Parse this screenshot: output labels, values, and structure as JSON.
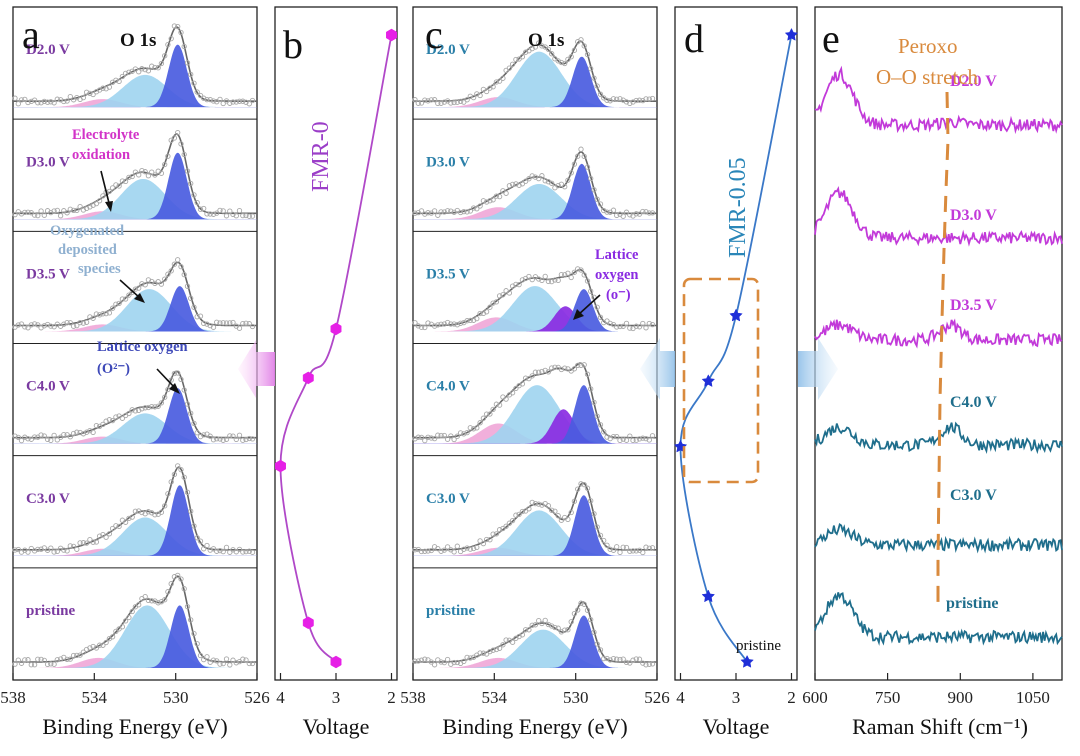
{
  "panel_letters": {
    "a": "a",
    "b": "b",
    "c": "c",
    "d": "d",
    "e": "e"
  },
  "colors": {
    "violet_label": "#7a3aa0",
    "teal_label": "#2a7fa8",
    "fmr0_curve": "#b048c8",
    "fmr0_marker": "#e620e6",
    "fmr005_curve": "#3a78c8",
    "fmr005_marker": "#1f2fd8",
    "lattice_peak": "#4a5ce0",
    "deposited_peak": "#9fd4f0",
    "electrolyte_peak": "#f0a8d8",
    "purple_peak": "#8a2be2",
    "envelope": "#666666",
    "raman_magenta": "#c23ad9",
    "raman_teal": "#1f6e8c",
    "peroxo": "#d98a3d",
    "text_magenta": "#d233c8",
    "annot_blue_grey": "#8fb0d0",
    "annot_blue": "#3d48b8"
  },
  "chart_data": [
    {
      "id": "a",
      "type": "line",
      "title": "O 1s",
      "xlabel": "Binding Energy (eV)",
      "xlim": [
        538,
        526
      ],
      "xticks": [
        "538",
        "534",
        "530",
        "526"
      ],
      "spectra": [
        {
          "label": "D2.0 V",
          "components": [
            {
              "name": "lattice oxygen",
              "center": 529.9,
              "height": 0.62
            },
            {
              "name": "oxygenated deposited species",
              "center": 531.5,
              "height": 0.32
            },
            {
              "name": "electrolyte oxidation",
              "center": 533.6,
              "height": 0.08
            }
          ]
        },
        {
          "label": "D3.0 V",
          "components": [
            {
              "name": "lattice oxygen",
              "center": 529.9,
              "height": 0.66
            },
            {
              "name": "oxygenated deposited species",
              "center": 531.6,
              "height": 0.4
            },
            {
              "name": "electrolyte oxidation",
              "center": 533.6,
              "height": 0.08
            }
          ]
        },
        {
          "label": "D3.5 V",
          "components": [
            {
              "name": "lattice oxygen",
              "center": 529.8,
              "height": 0.45
            },
            {
              "name": "oxygenated deposited species",
              "center": 531.3,
              "height": 0.42
            },
            {
              "name": "electrolyte oxidation",
              "center": 533.6,
              "height": 0.07
            }
          ]
        },
        {
          "label": "C4.0 V",
          "components": [
            {
              "name": "lattice oxygen",
              "center": 529.9,
              "height": 0.55
            },
            {
              "name": "oxygenated deposited species",
              "center": 531.5,
              "height": 0.3
            },
            {
              "name": "electrolyte oxidation",
              "center": 533.6,
              "height": 0.07
            }
          ]
        },
        {
          "label": "C3.0 V",
          "components": [
            {
              "name": "lattice oxygen",
              "center": 529.8,
              "height": 0.7
            },
            {
              "name": "oxygenated deposited species",
              "center": 531.5,
              "height": 0.38
            },
            {
              "name": "electrolyte oxidation",
              "center": 533.6,
              "height": 0.07
            }
          ]
        },
        {
          "label": "pristine",
          "components": [
            {
              "name": "lattice oxygen",
              "center": 529.8,
              "height": 0.62
            },
            {
              "name": "oxygenated deposited species",
              "center": 531.4,
              "height": 0.62
            },
            {
              "name": "electrolyte oxidation",
              "center": 533.8,
              "height": 0.1
            }
          ]
        }
      ],
      "annotations": {
        "electrolyte_line1": "Electrolyte",
        "electrolyte_line2": "oxidation",
        "deposited_line1": "Oxygenated",
        "deposited_line2": "deposited",
        "deposited_line3": "species",
        "lattice_line1": "Lattice oxygen",
        "lattice_line2": "(O²⁻)"
      }
    },
    {
      "id": "b",
      "type": "line",
      "xlabel": "Voltage",
      "xlim": [
        4.1,
        1.9
      ],
      "xticks": [
        "4",
        "3",
        "2"
      ],
      "series_label": "FMR-0",
      "points": [
        {
          "voltage": 2.0,
          "step": 0
        },
        {
          "voltage": 3.0,
          "step": 3
        },
        {
          "voltage": 3.5,
          "step": 3.5
        },
        {
          "voltage": 4.0,
          "step": 4.4
        },
        {
          "voltage": 3.5,
          "step": 6
        },
        {
          "voltage": 3.0,
          "step": 6.4
        }
      ]
    },
    {
      "id": "c",
      "type": "line",
      "title": "O 1s",
      "xlabel": "Binding Energy (eV)",
      "xlim": [
        538,
        526
      ],
      "xticks": [
        "538",
        "534",
        "530",
        "526"
      ],
      "spectra": [
        {
          "label": "D2.0 V",
          "components": [
            {
              "name": "lattice oxygen",
              "center": 529.7,
              "height": 0.5
            },
            {
              "name": "oxygenated deposited species",
              "center": 531.8,
              "height": 0.55
            },
            {
              "name": "electrolyte oxidation",
              "center": 533.8,
              "height": 0.1
            }
          ]
        },
        {
          "label": "D3.0 V",
          "components": [
            {
              "name": "lattice oxygen",
              "center": 529.7,
              "height": 0.55
            },
            {
              "name": "oxygenated deposited species",
              "center": 531.8,
              "height": 0.35
            },
            {
              "name": "electrolyte oxidation",
              "center": 533.8,
              "height": 0.12
            }
          ]
        },
        {
          "label": "D3.5 V",
          "components": [
            {
              "name": "lattice oxygen",
              "center": 529.6,
              "height": 0.42
            },
            {
              "name": "oxygenated deposited species",
              "center": 532.0,
              "height": 0.45
            },
            {
              "name": "lattice oxygen (o⁻)",
              "center": 530.5,
              "height": 0.25
            },
            {
              "name": "electrolyte oxidation",
              "center": 533.9,
              "height": 0.14
            }
          ]
        },
        {
          "label": "C4.0 V",
          "components": [
            {
              "name": "lattice oxygen",
              "center": 529.6,
              "height": 0.58
            },
            {
              "name": "oxygenated deposited species",
              "center": 531.9,
              "height": 0.58
            },
            {
              "name": "lattice oxygen (o⁻)",
              "center": 530.6,
              "height": 0.34
            },
            {
              "name": "electrolyte oxidation",
              "center": 533.8,
              "height": 0.2
            }
          ]
        },
        {
          "label": "C3.0 V",
          "components": [
            {
              "name": "lattice oxygen",
              "center": 529.6,
              "height": 0.6
            },
            {
              "name": "oxygenated deposited species",
              "center": 531.8,
              "height": 0.45
            },
            {
              "name": "electrolyte oxidation",
              "center": 533.8,
              "height": 0.08
            }
          ]
        },
        {
          "label": "pristine",
          "components": [
            {
              "name": "lattice oxygen",
              "center": 529.6,
              "height": 0.52
            },
            {
              "name": "oxygenated deposited species",
              "center": 531.6,
              "height": 0.38
            },
            {
              "name": "electrolyte oxidation",
              "center": 533.8,
              "height": 0.1
            }
          ]
        }
      ],
      "annotations": {
        "lattice_line1": "Lattice",
        "lattice_line2": "oxygen",
        "lattice_line3": "(o⁻)"
      }
    },
    {
      "id": "d",
      "type": "line",
      "xlabel": "Voltage",
      "xlim": [
        4.1,
        1.9
      ],
      "xticks": [
        "4",
        "3",
        "2"
      ],
      "series_label": "FMR-0.05",
      "point_label": "pristine",
      "points": [
        {
          "voltage": 2.0,
          "step": 0
        },
        {
          "voltage": 3.0,
          "step": 3
        },
        {
          "voltage": 3.5,
          "step": 3.7
        },
        {
          "voltage": 4.0,
          "step": 4.4
        },
        {
          "voltage": 3.5,
          "step": 6
        },
        {
          "voltage": 2.8,
          "step": 6.7
        }
      ]
    },
    {
      "id": "e",
      "type": "line",
      "xlabel": "Raman Shift (cm⁻¹)",
      "xlim": [
        600,
        1110
      ],
      "xticks": [
        {
          "label": "600",
          "value": 600
        },
        {
          "label": "750",
          "value": 750
        },
        {
          "label": "900",
          "value": 900
        },
        {
          "label": "1050",
          "value": 1050
        }
      ],
      "peak_annotation_line1": "Peroxo",
      "peak_annotation_line2": "O–O stretch",
      "peroxo_position": 880,
      "spectra": [
        {
          "label": "D2.0 V",
          "peak_650": 0.85,
          "peak_880": 0.05
        },
        {
          "label": "D3.0 V",
          "peak_650": 0.75,
          "peak_880": 0.0
        },
        {
          "label": "D3.5 V",
          "peak_650": 0.25,
          "peak_880": 0.25
        },
        {
          "label": "C4.0 V",
          "peak_650": 0.3,
          "peak_880": 0.3
        },
        {
          "label": "C3.0 V",
          "peak_650": 0.25,
          "peak_880": 0.0
        },
        {
          "label": "pristine",
          "peak_650": 0.7,
          "peak_880": 0.0
        }
      ]
    }
  ]
}
